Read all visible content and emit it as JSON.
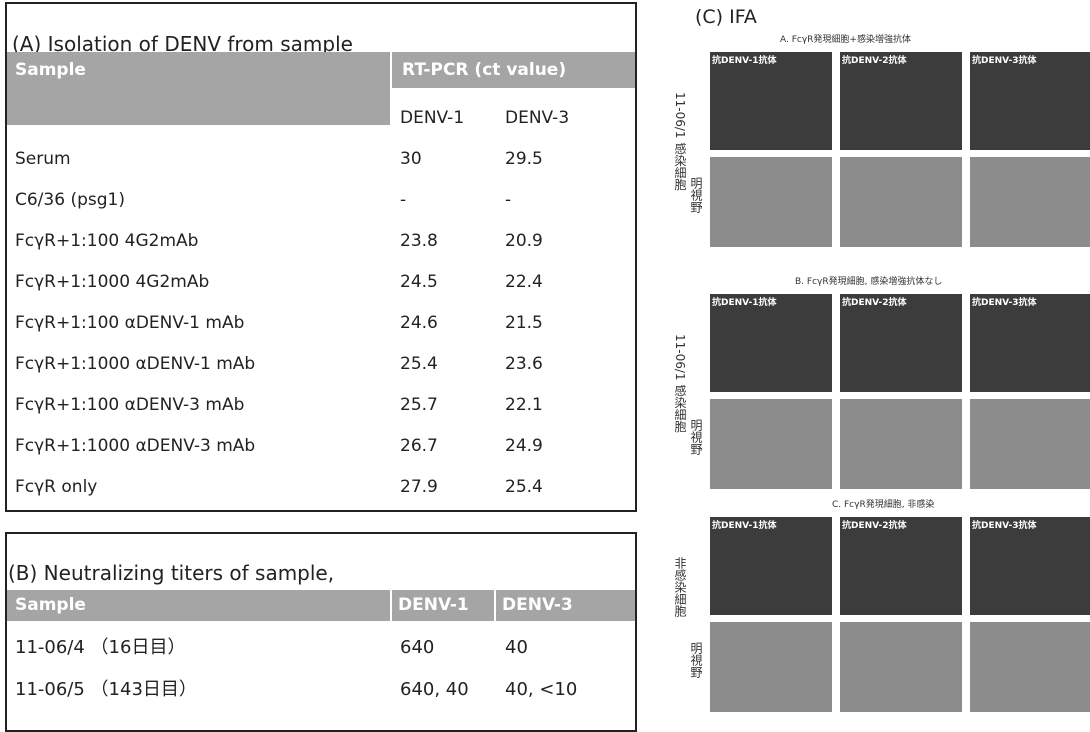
{
  "panel_a": {
    "title": "(A) Isolation of DENV from sample",
    "headers": [
      "Sample",
      "RT-PCR (ct value)"
    ],
    "subheaders": [
      "DENV-1",
      "DENV-3"
    ],
    "rows": [
      [
        "Serum",
        "30",
        "29.5"
      ],
      [
        "C6/36 (psg1)",
        "-",
        "-"
      ],
      [
        "FcγR+1:100 4G2mAb",
        "23.8",
        "20.9"
      ],
      [
        "FcγR+1:1000 4G2mAb",
        "24.5",
        "22.4"
      ],
      [
        "FcγR+1:100 αDENV-1 mAb",
        "24.6",
        "21.5"
      ],
      [
        "FcγR+1:1000 αDENV-1 mAb",
        "25.4",
        "23.6"
      ],
      [
        "FcγR+1:100 αDENV-3 mAb",
        "25.7",
        "22.1"
      ],
      [
        "FcγR+1:1000 αDENV-3 mAb",
        "26.7",
        "24.9"
      ],
      [
        "FcγR only",
        "27.9",
        "25.4"
      ]
    ]
  },
  "panel_b": {
    "title": "(B) Neutralizing titers of sample,",
    "headers": [
      "Sample",
      "DENV-1",
      "DENV-3"
    ],
    "rows": [
      [
        "11-06/4 （16日目）",
        "640",
        "40"
      ],
      [
        "11-06/5 （143日目）",
        "640, 40",
        "40, <10"
      ]
    ]
  },
  "panel_c": {
    "title": "(C) IFA",
    "sections": [
      {
        "title": "A. FcγR発現細胞+感染増強抗体",
        "row_labels": [
          "11-06/1 感染細胞",
          "明視野"
        ],
        "column_labels": [
          "抗DENV-1抗体",
          "抗DENV-2抗体",
          "抗DENV-3抗体"
        ]
      },
      {
        "title": "B. FcγR発現細胞, 感染増強抗体なし",
        "row_labels": [
          "11-06/1 感染細胞",
          "明視野"
        ],
        "column_labels": [
          "抗DENV-1抗体",
          "抗DENV-2抗体",
          "抗DENV-3抗体"
        ]
      },
      {
        "title": "C. FcγR発現細胞, 非感染",
        "row_labels": [
          "非感染細胞",
          "明視野"
        ],
        "column_labels": [
          "抗DENV-1抗体",
          "抗DENV-2抗体",
          "抗DENV-3抗体"
        ]
      }
    ]
  }
}
